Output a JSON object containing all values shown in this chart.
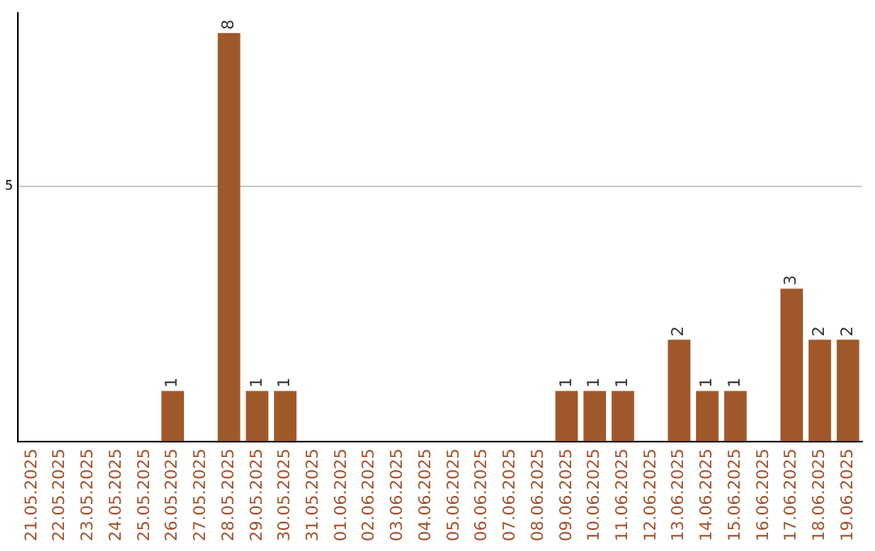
{
  "chart_data": {
    "type": "bar",
    "categories": [
      "21.05.2025",
      "22.05.2025",
      "23.05.2025",
      "24.05.2025",
      "25.05.2025",
      "26.05.2025",
      "27.05.2025",
      "28.05.2025",
      "29.05.2025",
      "30.05.2025",
      "31.05.2025",
      "01.06.2025",
      "02.06.2025",
      "03.06.2025",
      "04.06.2025",
      "05.06.2025",
      "06.06.2025",
      "07.06.2025",
      "08.06.2025",
      "09.06.2025",
      "10.06.2025",
      "11.06.2025",
      "12.06.2025",
      "13.06.2025",
      "14.06.2025",
      "15.06.2025",
      "16.06.2025",
      "17.06.2025",
      "18.06.2025",
      "19.06.2025"
    ],
    "values": [
      0,
      0,
      0,
      0,
      0,
      1,
      0,
      8,
      1,
      1,
      0,
      0,
      0,
      0,
      0,
      0,
      0,
      0,
      0,
      1,
      1,
      1,
      0,
      2,
      1,
      1,
      0,
      3,
      2,
      2
    ],
    "color": "#a0582a",
    "ylim": [
      0,
      8.4
    ],
    "yticks": [
      {
        "value": 0,
        "label": null
      },
      5
    ],
    "grid": "y",
    "legend": false,
    "value_labels": [
      null,
      null,
      null,
      null,
      null,
      "1",
      null,
      "8",
      "1",
      "1",
      null,
      null,
      null,
      null,
      null,
      null,
      null,
      null,
      null,
      "1",
      "1",
      "1",
      null,
      "2",
      "1",
      "1",
      null,
      "3",
      "2",
      "2"
    ]
  }
}
